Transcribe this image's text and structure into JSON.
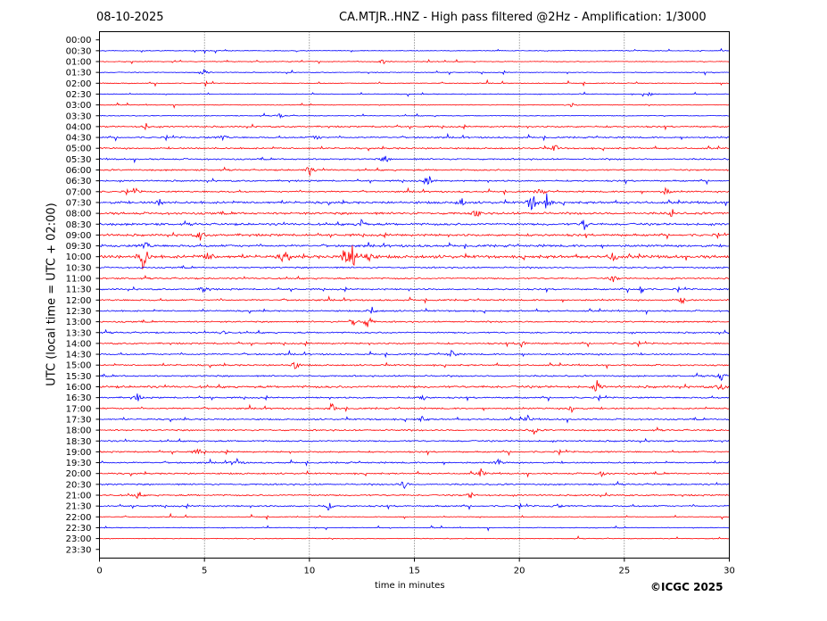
{
  "header": {
    "date": "08-10-2025",
    "title": "CA.MTJR..HNZ - High pass filtered @2Hz - Amplification: 1/3000"
  },
  "footer": {
    "credit": "©ICGC 2025"
  },
  "chart_data": {
    "type": "line",
    "title": "CA.MTJR..HNZ - High pass filtered @2Hz - Amplification: 1/3000",
    "xlabel": "time in minutes",
    "ylabel": "UTC (local time = UTC + 02:00)",
    "xlim": [
      0,
      30
    ],
    "x_ticks": [
      0,
      5,
      10,
      15,
      20,
      25,
      30
    ],
    "grid": "vertical dotted at 5-minute intervals",
    "series_colors": [
      "#ff0000",
      "#0000ff"
    ],
    "rows": [
      "00:00",
      "00:30",
      "01:00",
      "01:30",
      "02:00",
      "02:30",
      "03:00",
      "03:30",
      "04:00",
      "04:30",
      "05:00",
      "05:30",
      "06:00",
      "06:30",
      "07:00",
      "07:30",
      "08:00",
      "08:30",
      "09:00",
      "09:30",
      "10:00",
      "10:30",
      "11:00",
      "11:30",
      "12:00",
      "12:30",
      "13:00",
      "13:30",
      "14:00",
      "14:30",
      "15:00",
      "15:30",
      "16:00",
      "16:30",
      "17:00",
      "17:30",
      "18:00",
      "18:30",
      "19:00",
      "19:30",
      "20:00",
      "20:30",
      "21:00",
      "21:30",
      "22:00",
      "22:30",
      "23:00",
      "23:30"
    ],
    "trace_start_row": "00:30",
    "trace_end_row": "23:00",
    "noise_level": [
      0,
      1,
      1,
      1,
      1,
      1,
      1,
      1,
      2,
      2,
      2,
      2,
      2,
      2,
      2,
      3,
      3,
      3,
      3,
      3,
      4,
      2,
      2,
      2,
      2,
      2,
      2,
      2,
      2,
      2,
      2,
      2,
      3,
      2,
      2,
      2,
      2,
      2,
      2,
      2,
      2,
      2,
      2,
      2,
      1,
      1,
      1,
      0
    ],
    "events": [
      {
        "row": "01:00",
        "minute": 13.5,
        "amp": 3
      },
      {
        "row": "01:30",
        "minute": 5.0,
        "amp": 4
      },
      {
        "row": "02:30",
        "minute": 26.2,
        "amp": 3
      },
      {
        "row": "03:00",
        "minute": 22.5,
        "amp": 3
      },
      {
        "row": "03:30",
        "minute": 8.6,
        "amp": 4
      },
      {
        "row": "04:00",
        "minute": 2.2,
        "amp": 4
      },
      {
        "row": "04:30",
        "minute": 5.9,
        "amp": 4
      },
      {
        "row": "04:30",
        "minute": 10.3,
        "amp": 4
      },
      {
        "row": "05:00",
        "minute": 21.7,
        "amp": 5
      },
      {
        "row": "05:30",
        "minute": 13.6,
        "amp": 5
      },
      {
        "row": "06:00",
        "minute": 10.0,
        "amp": 7
      },
      {
        "row": "06:30",
        "minute": 15.7,
        "amp": 6
      },
      {
        "row": "07:00",
        "minute": 1.7,
        "amp": 5
      },
      {
        "row": "07:00",
        "minute": 21.0,
        "amp": 6
      },
      {
        "row": "07:00",
        "minute": 27.0,
        "amp": 5
      },
      {
        "row": "07:30",
        "minute": 2.9,
        "amp": 5
      },
      {
        "row": "07:30",
        "minute": 17.2,
        "amp": 7
      },
      {
        "row": "07:30",
        "minute": 20.6,
        "amp": 16
      },
      {
        "row": "07:30",
        "minute": 21.3,
        "amp": 10
      },
      {
        "row": "08:00",
        "minute": 18.0,
        "amp": 6
      },
      {
        "row": "08:00",
        "minute": 27.3,
        "amp": 5
      },
      {
        "row": "08:30",
        "minute": 12.5,
        "amp": 6
      },
      {
        "row": "08:30",
        "minute": 23.1,
        "amp": 8
      },
      {
        "row": "09:00",
        "minute": 4.8,
        "amp": 6
      },
      {
        "row": "09:30",
        "minute": 2.2,
        "amp": 6
      },
      {
        "row": "10:00",
        "minute": 2.1,
        "amp": 20
      },
      {
        "row": "10:00",
        "minute": 5.2,
        "amp": 8
      },
      {
        "row": "10:00",
        "minute": 8.8,
        "amp": 9
      },
      {
        "row": "10:00",
        "minute": 11.7,
        "amp": 14
      },
      {
        "row": "10:00",
        "minute": 12.1,
        "amp": 22
      },
      {
        "row": "10:00",
        "minute": 12.8,
        "amp": 10
      },
      {
        "row": "10:00",
        "minute": 24.5,
        "amp": 7
      },
      {
        "row": "11:00",
        "minute": 24.5,
        "amp": 5
      },
      {
        "row": "11:30",
        "minute": 5.0,
        "amp": 5
      },
      {
        "row": "11:30",
        "minute": 25.8,
        "amp": 6
      },
      {
        "row": "12:00",
        "minute": 27.8,
        "amp": 5
      },
      {
        "row": "12:30",
        "minute": 13.0,
        "amp": 5
      },
      {
        "row": "13:00",
        "minute": 12.1,
        "amp": 8
      },
      {
        "row": "13:00",
        "minute": 12.8,
        "amp": 9
      },
      {
        "row": "13:30",
        "minute": 5.9,
        "amp": 4
      },
      {
        "row": "14:00",
        "minute": 20.1,
        "amp": 5
      },
      {
        "row": "14:30",
        "minute": 16.8,
        "amp": 6
      },
      {
        "row": "15:00",
        "minute": 9.3,
        "amp": 6
      },
      {
        "row": "15:30",
        "minute": 29.6,
        "amp": 6
      },
      {
        "row": "16:00",
        "minute": 23.7,
        "amp": 8
      },
      {
        "row": "16:00",
        "minute": 29.6,
        "amp": 5
      },
      {
        "row": "16:30",
        "minute": 1.8,
        "amp": 5
      },
      {
        "row": "16:30",
        "minute": 15.4,
        "amp": 4
      },
      {
        "row": "17:00",
        "minute": 11.1,
        "amp": 5
      },
      {
        "row": "17:00",
        "minute": 22.5,
        "amp": 5
      },
      {
        "row": "17:30",
        "minute": 15.4,
        "amp": 4
      },
      {
        "row": "17:30",
        "minute": 20.4,
        "amp": 5
      },
      {
        "row": "18:00",
        "minute": 20.7,
        "amp": 5
      },
      {
        "row": "19:00",
        "minute": 4.7,
        "amp": 4
      },
      {
        "row": "19:30",
        "minute": 6.5,
        "amp": 7
      },
      {
        "row": "19:30",
        "minute": 19.0,
        "amp": 4
      },
      {
        "row": "20:00",
        "minute": 18.2,
        "amp": 5
      },
      {
        "row": "20:00",
        "minute": 24.0,
        "amp": 5
      },
      {
        "row": "20:30",
        "minute": 14.5,
        "amp": 6
      },
      {
        "row": "21:00",
        "minute": 1.8,
        "amp": 4
      },
      {
        "row": "21:00",
        "minute": 17.7,
        "amp": 4
      },
      {
        "row": "21:30",
        "minute": 10.9,
        "amp": 5
      },
      {
        "row": "21:30",
        "minute": 21.8,
        "amp": 3
      }
    ]
  }
}
